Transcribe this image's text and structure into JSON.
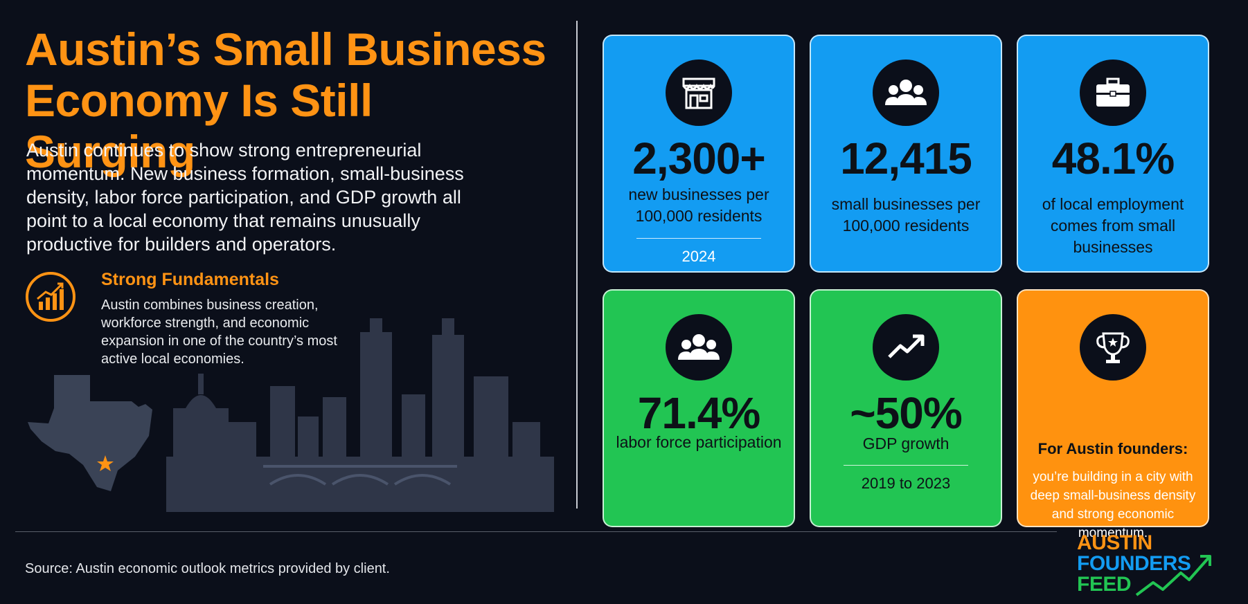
{
  "header": {
    "title": "Austin’s Small Business Economy Is Still Surging",
    "intro": "Austin continues to show strong entrepreneurial momentum. New business formation, small-business density, labor force participation, and GDP growth all point to a local economy that remains unusually productive for builders and operators."
  },
  "fundamentals": {
    "icon": "growth-chart-icon",
    "title": "Strong Fundamentals",
    "body": "Austin combines business creation, workforce strength, and economic expansion in one of the country’s most active local economies."
  },
  "cards": [
    {
      "icon": "storefront-icon",
      "value": "2,300+",
      "label": "new businesses per 100,000 residents",
      "note": "2024",
      "color": "#139cf2"
    },
    {
      "icon": "people-icon",
      "value": "12,415",
      "label": "small businesses per 100,000 residents",
      "color": "#139cf2"
    },
    {
      "icon": "briefcase-icon",
      "value": "48.1%",
      "label": "of local employment comes from small businesses",
      "color": "#139cf2"
    },
    {
      "icon": "people-icon",
      "value": "71.4%",
      "label": "labor force participation",
      "color": "#22c553"
    },
    {
      "icon": "trend-up-icon",
      "value": "~50%",
      "label": "GDP growth",
      "note": "2019 to 2023",
      "color": "#22c553"
    },
    {
      "icon": "trophy-icon",
      "title": "For Austin founders:",
      "body": "you’re building in a city with deep small-business density and strong economic momentum.",
      "color": "#ff920f"
    }
  ],
  "footer": {
    "source": "Source: Austin economic outlook metrics provided by client."
  },
  "logo": {
    "line1": "AUSTIN",
    "line2": "FOUNDERS",
    "line3": "FEED",
    "colors": {
      "austin": "#ff9314",
      "founders": "#139cf2",
      "feed": "#22c553"
    }
  },
  "colors": {
    "background": "#0b0f1a",
    "accent_orange": "#ff9314",
    "card_blue": "#139cf2",
    "card_green": "#22c553",
    "card_orange": "#ff920f"
  }
}
